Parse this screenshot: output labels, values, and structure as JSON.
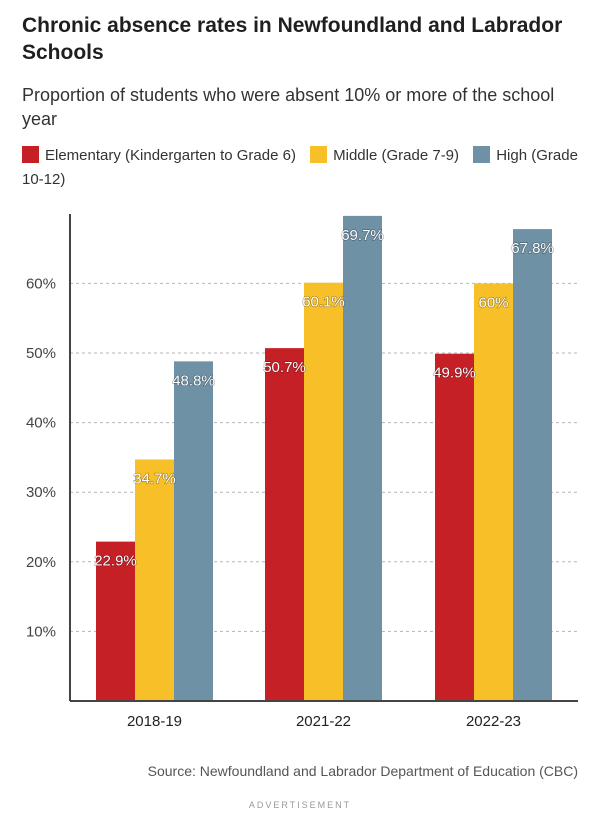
{
  "chart_data": {
    "type": "bar",
    "title": "Chronic absence rates in Newfoundland and Labrador Schools",
    "subtitle": "Proportion of students who were absent 10% or more of the school year",
    "categories": [
      "2018-19",
      "2021-22",
      "2022-23"
    ],
    "series": [
      {
        "name": "Elementary (Kindergarten to Grade 6)",
        "color": "#c62027",
        "values": [
          22.9,
          50.7,
          49.9
        ],
        "labels": [
          "22.9%",
          "50.7%",
          "49.9%"
        ]
      },
      {
        "name": "Middle (Grade 7-9)",
        "color": "#f7c028",
        "values": [
          34.7,
          60.1,
          60
        ],
        "labels": [
          "34.7%",
          "60.1%",
          "60%"
        ]
      },
      {
        "name": "High (Grade 10-12)",
        "color": "#6f91a6",
        "values": [
          48.8,
          69.7,
          67.8
        ],
        "labels": [
          "48.8%",
          "69.7%",
          "67.8%"
        ]
      }
    ],
    "yticks": [
      10,
      20,
      30,
      40,
      50,
      60
    ],
    "ytick_labels": [
      "10%",
      "20%",
      "30%",
      "40%",
      "50%",
      "60%"
    ],
    "ylim": [
      0,
      70
    ],
    "xlabel": "",
    "ylabel": "",
    "grid": true,
    "legend": "top"
  },
  "legend": {
    "elementary": "Elementary (Kindergarten to Grade 6)",
    "middle": "Middle (Grade 7-9)",
    "high": "High (Grade 10-12)"
  },
  "source": "Source: Newfoundland and Labrador Department of Education (CBC)",
  "advertisement": "ADVERTISEMENT"
}
